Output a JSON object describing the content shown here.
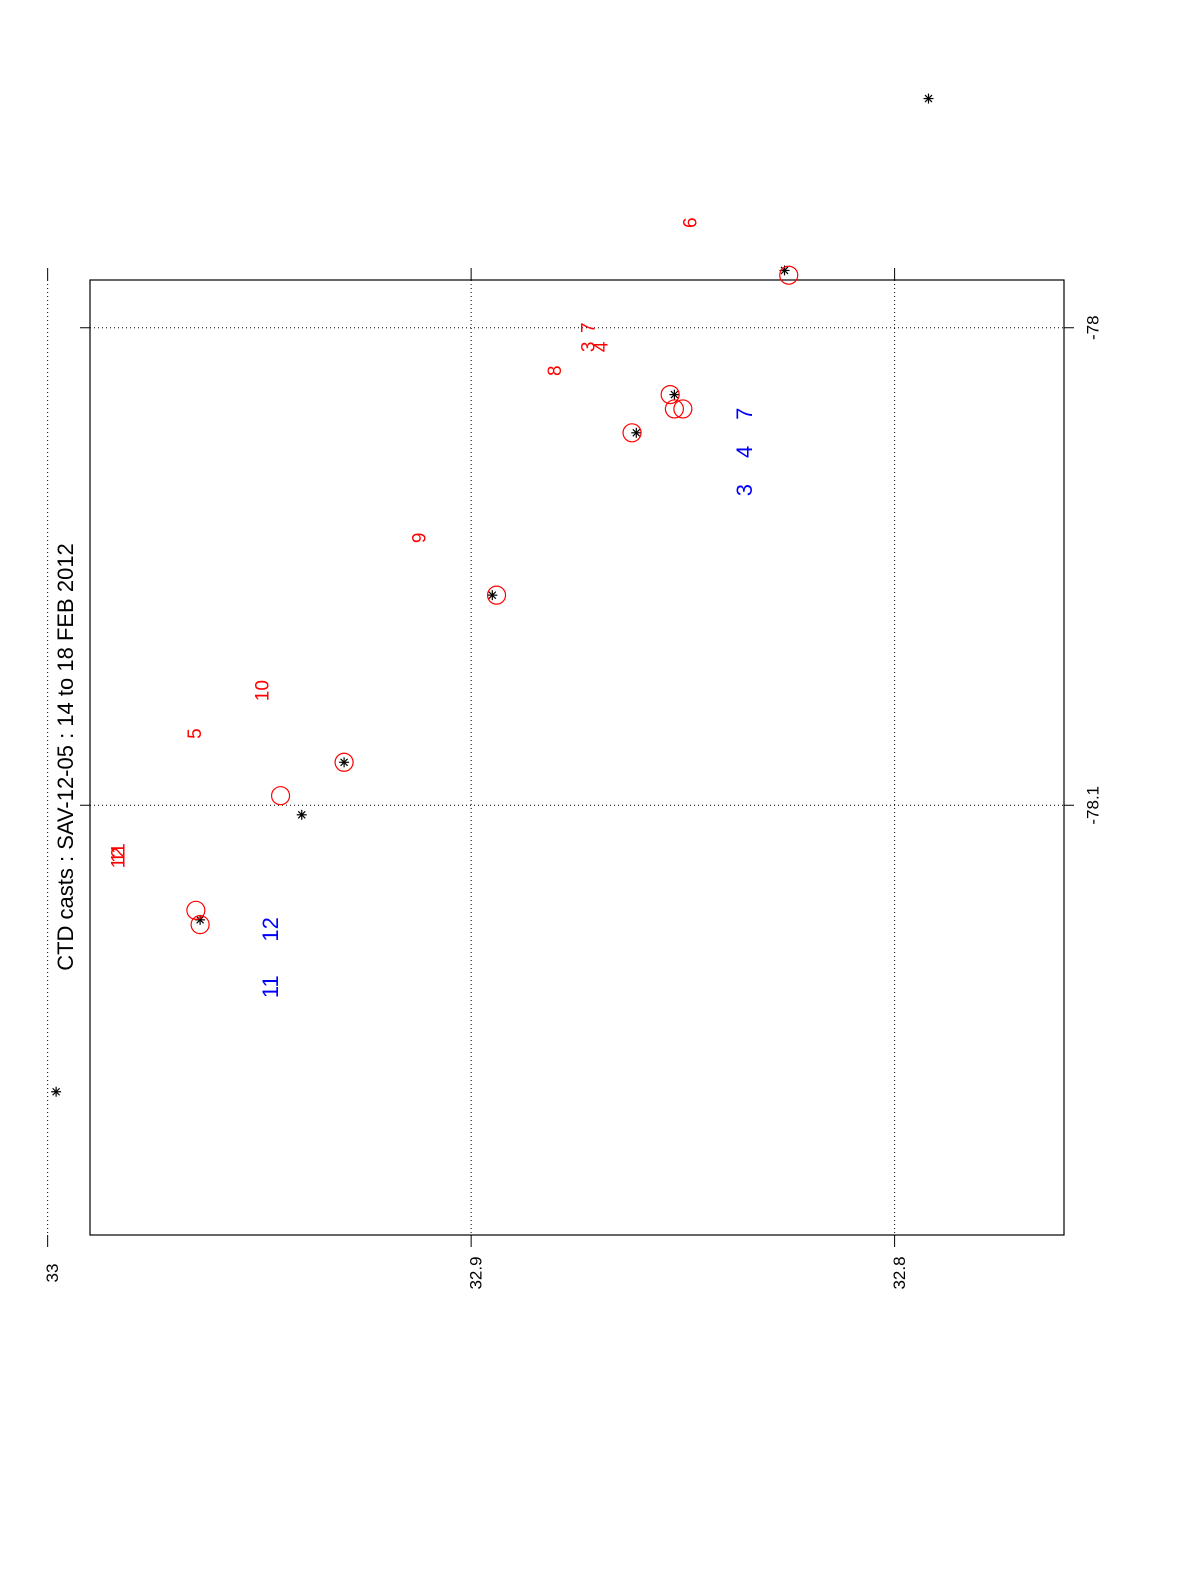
{
  "chart_data": {
    "type": "scatter",
    "title": "CTD casts :  SAV-12-05 :  14 to 18 FEB  2012",
    "xlabel": "",
    "ylabel": "",
    "orientation": "rotated 90° counter-clockwise",
    "lat_axis": {
      "range": [
        32.99,
        32.76
      ],
      "ticks": [
        33,
        32.9,
        32.8
      ],
      "tick_labels": [
        "33",
        "32.9",
        "32.8"
      ]
    },
    "lon_axis": {
      "range": [
        -77.99,
        -78.19
      ],
      "ticks": [
        -78,
        -78.1
      ],
      "tick_labels": [
        "-78",
        "-78.1"
      ]
    },
    "grid": true,
    "legend": "none",
    "colors": {
      "star": "#000000",
      "circle": "#ff0000",
      "red_label": "#ff0000",
      "blue_label": "#0000ff"
    },
    "series": [
      {
        "marker": "star",
        "points": [
          {
            "lat": 32.998,
            "lon": -78.16
          },
          {
            "lat": 32.964,
            "lon": -78.124
          },
          {
            "lat": 32.94,
            "lon": -78.102
          },
          {
            "lat": 32.93,
            "lon": -78.091
          },
          {
            "lat": 32.895,
            "lon": -78.056
          },
          {
            "lat": 32.861,
            "lon": -78.022
          },
          {
            "lat": 32.852,
            "lon": -78.014
          },
          {
            "lat": 32.826,
            "lon": -77.988
          },
          {
            "lat": 32.792,
            "lon": -77.952
          }
        ]
      },
      {
        "marker": "circle",
        "points": [
          {
            "lat": 32.965,
            "lon": -78.122
          },
          {
            "lat": 32.964,
            "lon": -78.125
          },
          {
            "lat": 32.945,
            "lon": -78.098
          },
          {
            "lat": 32.93,
            "lon": -78.091
          },
          {
            "lat": 32.894,
            "lon": -78.056
          },
          {
            "lat": 32.862,
            "lon": -78.022
          },
          {
            "lat": 32.853,
            "lon": -78.014
          },
          {
            "lat": 32.852,
            "lon": -78.017
          },
          {
            "lat": 32.85,
            "lon": -78.017
          },
          {
            "lat": 32.825,
            "lon": -77.989
          }
        ]
      }
    ],
    "annotations": [
      {
        "text": "12",
        "color": "red",
        "lat": 32.983,
        "lon": -78.111
      },
      {
        "text": "11",
        "color": "red",
        "lat": 32.983,
        "lon": -78.11
      },
      {
        "text": "5",
        "color": "red",
        "lat": 32.965,
        "lon": -78.085
      },
      {
        "text": "10",
        "color": "red",
        "lat": 32.949,
        "lon": -78.076
      },
      {
        "text": "9",
        "color": "red",
        "lat": 32.912,
        "lon": -78.044
      },
      {
        "text": "8",
        "color": "red",
        "lat": 32.88,
        "lon": -78.009
      },
      {
        "text": "3",
        "color": "red",
        "lat": 32.872,
        "lon": -78.004
      },
      {
        "text": "7",
        "color": "red",
        "lat": 32.872,
        "lon": -78.0
      },
      {
        "text": "4",
        "color": "red",
        "lat": 32.869,
        "lon": -78.004
      },
      {
        "text": "6",
        "color": "red",
        "lat": 32.848,
        "lon": -77.978
      },
      {
        "text": "11",
        "color": "blue",
        "lat": 32.947,
        "lon": -78.138
      },
      {
        "text": "12",
        "color": "blue",
        "lat": 32.947,
        "lon": -78.126
      },
      {
        "text": "3",
        "color": "blue",
        "lat": 32.835,
        "lon": -78.034
      },
      {
        "text": "4",
        "color": "blue",
        "lat": 32.835,
        "lon": -78.026
      },
      {
        "text": "7",
        "color": "blue",
        "lat": 32.835,
        "lon": -78.018
      }
    ]
  }
}
